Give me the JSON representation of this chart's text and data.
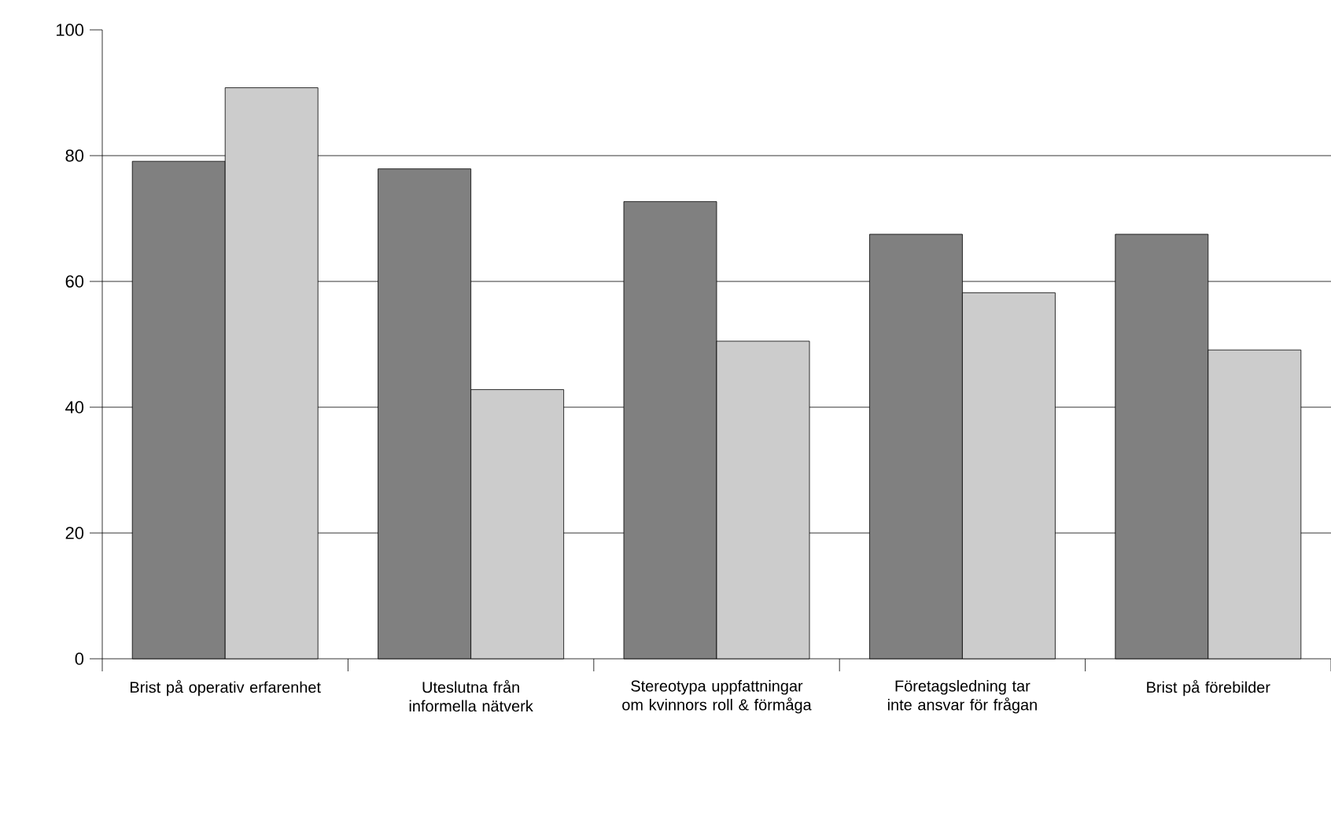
{
  "chart_data": {
    "type": "bar",
    "categories": [
      "Brist på operativ erfarenhet",
      "Uteslutna från informella nätverk",
      "Stereotypa uppfattningar om kvinnors roll & förmåga",
      "Företagsledning tar inte ansvar för frågan",
      "Brist på förebilder"
    ],
    "series": [
      {
        "color": "#808080",
        "values": [
          79.1,
          77.9,
          72.7,
          67.5,
          67.5
        ]
      },
      {
        "color": "#cccccc",
        "values": [
          90.8,
          42.8,
          50.5,
          58.2,
          49.1
        ]
      }
    ],
    "ylim": [
      0,
      100
    ],
    "yticks": [
      0,
      20,
      40,
      60,
      80,
      100
    ],
    "grid": "y"
  }
}
